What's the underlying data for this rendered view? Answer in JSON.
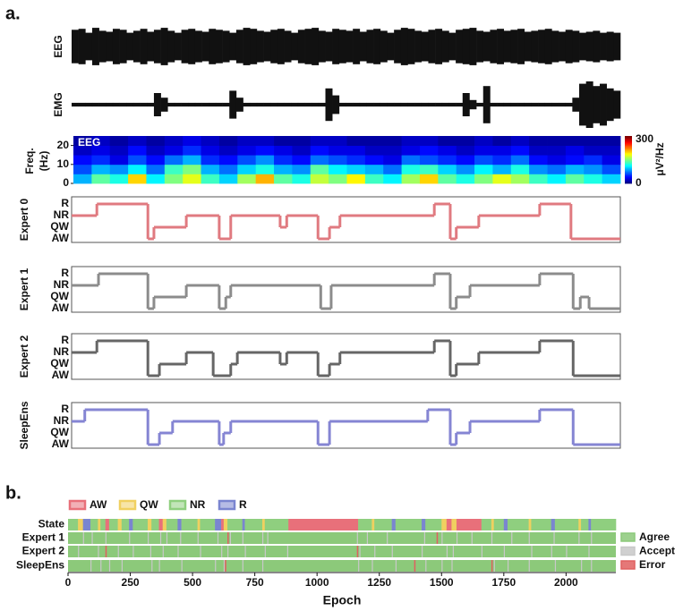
{
  "panel_labels": [
    "a.",
    "b."
  ],
  "chart_data": [
    {
      "type": "trace",
      "label": "EEG",
      "color": "#111111",
      "values": [
        0.85,
        0.9,
        0.7,
        0.95,
        0.8,
        0.75,
        0.9,
        0.85,
        0.7,
        0.8,
        0.9,
        0.75,
        0.85,
        0.95,
        0.8,
        0.7,
        0.85,
        0.9,
        0.8,
        0.75,
        0.9,
        0.85,
        0.8,
        0.7,
        0.85,
        0.95,
        0.9,
        0.8,
        0.75,
        0.85,
        0.9,
        0.8,
        0.7,
        0.85,
        0.9,
        0.95,
        0.8,
        0.75,
        0.9,
        0.85,
        0.8,
        0.9,
        0.75,
        0.85,
        0.9,
        0.8,
        0.7,
        0.85,
        0.95,
        0.9,
        0.8,
        0.75,
        0.85,
        0.9,
        0.8,
        0.7,
        0.85,
        0.9,
        0.95,
        0.8,
        0.75,
        0.85,
        0.9,
        0.8,
        0.85,
        0.9,
        0.75,
        0.8,
        0.85,
        0.9,
        0.8,
        0.75,
        0.85,
        0.8,
        0.7,
        0.75,
        0.8,
        0.7,
        0.75,
        0.7
      ]
    },
    {
      "type": "trace",
      "label": "EMG",
      "color": "#111111",
      "values": [
        0.08,
        0.08,
        0.08,
        0.08,
        0.08,
        0.08,
        0.08,
        0.08,
        0.08,
        0.08,
        0.08,
        0.08,
        0.5,
        0.3,
        0.08,
        0.08,
        0.08,
        0.08,
        0.08,
        0.08,
        0.08,
        0.08,
        0.08,
        0.6,
        0.3,
        0.08,
        0.08,
        0.08,
        0.08,
        0.08,
        0.08,
        0.08,
        0.08,
        0.08,
        0.08,
        0.08,
        0.08,
        0.7,
        0.4,
        0.08,
        0.08,
        0.08,
        0.08,
        0.08,
        0.08,
        0.08,
        0.08,
        0.08,
        0.08,
        0.08,
        0.08,
        0.08,
        0.08,
        0.08,
        0.08,
        0.08,
        0.08,
        0.5,
        0.2,
        0.08,
        0.8,
        0.08,
        0.08,
        0.08,
        0.08,
        0.08,
        0.08,
        0.08,
        0.08,
        0.08,
        0.08,
        0.08,
        0.08,
        0.3,
        0.9,
        1.0,
        0.8,
        0.9,
        0.7,
        0.6
      ]
    },
    {
      "type": "heatmap",
      "ylabel": [
        "Freq.",
        "(Hz)"
      ],
      "annotation": "EEG",
      "ylim": [
        0,
        25
      ],
      "yticks": [
        0,
        10,
        20
      ],
      "band_edges": [
        0,
        5,
        10,
        15,
        20,
        25
      ],
      "clim": [
        0,
        300
      ],
      "cticks": [
        0,
        300
      ],
      "clabel": "μV²/Hz",
      "rows": [
        [
          90,
          140,
          120,
          200,
          110,
          150,
          180,
          130,
          100,
          160,
          210,
          140,
          120,
          170,
          150,
          190,
          130,
          110,
          160,
          200,
          140,
          120,
          150,
          180,
          160,
          130,
          110,
          140,
          120,
          100
        ],
        [
          60,
          90,
          80,
          110,
          70,
          130,
          150,
          90,
          70,
          100,
          120,
          90,
          80,
          140,
          110,
          100,
          90,
          70,
          120,
          130,
          100,
          80,
          110,
          90,
          120,
          80,
          70,
          90,
          80,
          60
        ],
        [
          40,
          50,
          30,
          60,
          40,
          70,
          90,
          50,
          40,
          60,
          80,
          50,
          40,
          70,
          60,
          50,
          40,
          30,
          70,
          60,
          50,
          40,
          60,
          50,
          70,
          40,
          30,
          40,
          50,
          30
        ],
        [
          20,
          30,
          20,
          40,
          20,
          30,
          50,
          30,
          20,
          30,
          40,
          30,
          20,
          40,
          30,
          30,
          20,
          20,
          30,
          40,
          30,
          20,
          30,
          30,
          40,
          20,
          20,
          30,
          20,
          20
        ],
        [
          10,
          20,
          10,
          20,
          10,
          20,
          30,
          20,
          10,
          20,
          20,
          10,
          10,
          20,
          20,
          10,
          10,
          10,
          20,
          20,
          10,
          10,
          20,
          10,
          20,
          10,
          10,
          10,
          10,
          10
        ]
      ]
    },
    {
      "type": "step",
      "name": "Expert 0",
      "color": "#e07a80",
      "levels": [
        "AW",
        "QW",
        "NR",
        "R"
      ],
      "xlim": [
        0,
        100
      ],
      "x": [
        0,
        4.6,
        13.9,
        15.0,
        20.9,
        26.9,
        29.0,
        38.0,
        39.2,
        44.9,
        47.0,
        48.9,
        66.1,
        69.0,
        70.1,
        74.2,
        85.3,
        91.0
      ],
      "values": [
        "NR",
        "R",
        "AW",
        "QW",
        "NR",
        "AW",
        "NR",
        "QW",
        "NR",
        "AW",
        "QW",
        "NR",
        "R",
        "AW",
        "QW",
        "NR",
        "R",
        "AW"
      ]
    },
    {
      "type": "step",
      "name": "Expert 1",
      "color": "#8c8c8c",
      "levels": [
        "AW",
        "QW",
        "NR",
        "R"
      ],
      "xlim": [
        0,
        100
      ],
      "x": [
        0,
        4.9,
        13.9,
        15.0,
        20.9,
        26.9,
        28.1,
        29.0,
        45.4,
        47.3,
        66.1,
        69.0,
        70.1,
        72.6,
        85.3,
        91.4,
        92.7,
        94.3
      ],
      "values": [
        "NR",
        "R",
        "AW",
        "QW",
        "NR",
        "AW",
        "QW",
        "NR",
        "AW",
        "NR",
        "R",
        "AW",
        "QW",
        "NR",
        "R",
        "AW",
        "QW",
        "AW"
      ]
    },
    {
      "type": "step",
      "name": "Expert 2",
      "color": "#666666",
      "levels": [
        "AW",
        "QW",
        "NR",
        "R"
      ],
      "xlim": [
        0,
        100
      ],
      "x": [
        0,
        4.6,
        13.9,
        16.0,
        20.9,
        25.8,
        29.0,
        30.2,
        38.0,
        39.2,
        44.9,
        47.0,
        48.9,
        66.1,
        69.0,
        70.1,
        74.2,
        85.3,
        91.4
      ],
      "values": [
        "NR",
        "R",
        "AW",
        "QW",
        "NR",
        "AW",
        "QW",
        "NR",
        "QW",
        "NR",
        "AW",
        "QW",
        "NR",
        "R",
        "AW",
        "QW",
        "NR",
        "R",
        "AW"
      ]
    },
    {
      "type": "step",
      "name": "SleepEns",
      "color": "#8585d3",
      "levels": [
        "AW",
        "QW",
        "NR",
        "R"
      ],
      "xlim": [
        0,
        100
      ],
      "x": [
        0,
        2.4,
        13.9,
        16.0,
        18.4,
        26.9,
        27.7,
        29.0,
        44.9,
        47.0,
        64.9,
        69.0,
        70.1,
        72.6,
        85.3,
        91.4
      ],
      "values": [
        "NR",
        "R",
        "AW",
        "QW",
        "NR",
        "AW",
        "QW",
        "NR",
        "AW",
        "NR",
        "R",
        "AW",
        "QW",
        "NR",
        "R",
        "AW"
      ]
    },
    {
      "type": "raster",
      "xlim": [
        0,
        2200
      ],
      "xticks": [
        0,
        250,
        500,
        750,
        1000,
        1250,
        1500,
        1750,
        2000
      ],
      "xlabel": "Epoch",
      "state_legend": [
        {
          "name": "AW",
          "color": "#e8707a"
        },
        {
          "name": "QW",
          "color": "#f0d060"
        },
        {
          "name": "NR",
          "color": "#8fcf7f"
        },
        {
          "name": "R",
          "color": "#7a85d0"
        }
      ],
      "outcome_legend": [
        {
          "name": "Agree",
          "color": "#8cc97a"
        },
        {
          "name": "Accept",
          "color": "#c8c8c8"
        },
        {
          "name": "Error",
          "color": "#e06060"
        }
      ],
      "state_row": {
        "name": "State",
        "x": [
          0,
          40,
          60,
          90,
          120,
          130,
          150,
          165,
          200,
          215,
          245,
          260,
          320,
          335,
          365,
          380,
          395,
          440,
          455,
          520,
          530,
          590,
          615,
          625,
          640,
          700,
          710,
          780,
          790,
          885,
          1165,
          1220,
          1230,
          1300,
          1315,
          1420,
          1435,
          1500,
          1520,
          1540,
          1560,
          1660,
          1700,
          1710,
          1750,
          1765,
          1850,
          1860,
          1940,
          1955,
          2050,
          2060,
          2090,
          2100
        ],
        "values": [
          "NR",
          "QW",
          "R",
          "NR",
          "QW",
          "NR",
          "AW",
          "NR",
          "QW",
          "NR",
          "R",
          "NR",
          "QW",
          "NR",
          "AW",
          "QW",
          "NR",
          "R",
          "NR",
          "QW",
          "NR",
          "R",
          "AW",
          "QW",
          "NR",
          "R",
          "NR",
          "QW",
          "NR",
          "AW",
          "NR",
          "QW",
          "NR",
          "R",
          "NR",
          "R",
          "NR",
          "QW",
          "AW",
          "QW",
          "AW",
          "NR",
          "QW",
          "NR",
          "R",
          "NR",
          "QW",
          "NR",
          "R",
          "NR",
          "QW",
          "NR",
          "R",
          "NR"
        ]
      },
      "rows": [
        {
          "name": "Expert 1",
          "accept": [
            60,
            95,
            150,
            245,
            320,
            370,
            395,
            450,
            520,
            600,
            650,
            700,
            780,
            800,
            1160,
            1200,
            1280,
            1430,
            1500,
            1560,
            1620,
            1700,
            1780,
            1850,
            1950,
            2050,
            2100
          ],
          "error": [
            640,
            1480
          ]
        },
        {
          "name": "Expert 2",
          "accept": [
            40,
            120,
            200,
            260,
            330,
            380,
            440,
            530,
            615,
            640,
            710,
            790,
            880,
            1170,
            1230,
            1300,
            1420,
            1520,
            1545,
            1660,
            1750,
            1860,
            1940,
            2000,
            2090
          ],
          "error": [
            150,
            1160
          ]
        },
        {
          "name": "SleepEns",
          "accept": [
            90,
            130,
            165,
            215,
            335,
            365,
            455,
            590,
            625,
            700,
            780,
            1165,
            1220,
            1315,
            1435,
            1500,
            1540,
            1710,
            1765,
            1850,
            1955,
            2060,
            2100
          ],
          "error": [
            630,
            1390,
            1700
          ]
        }
      ]
    }
  ]
}
